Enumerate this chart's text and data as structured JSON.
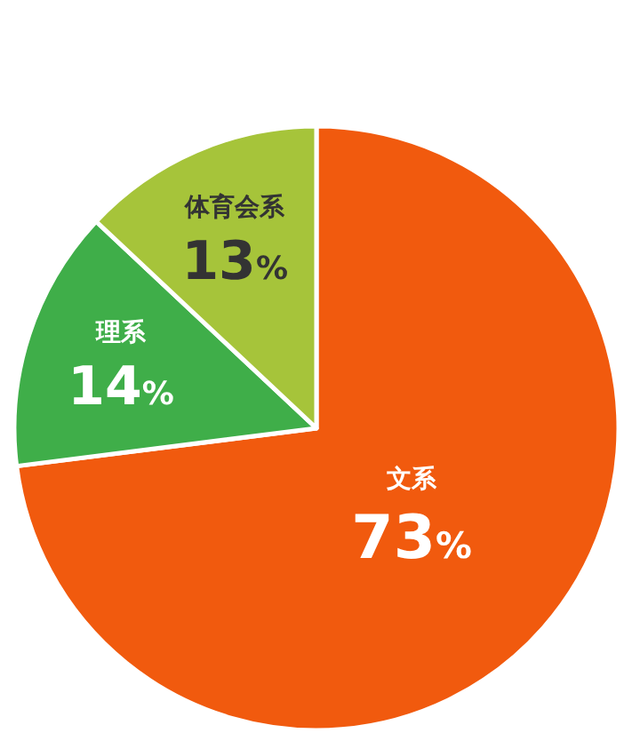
{
  "chart_data": {
    "type": "pie",
    "categories": [
      "文系",
      "理系",
      "体育会系"
    ],
    "values": [
      73,
      14,
      13
    ],
    "colors": [
      "#f15a0e",
      "#3fae49",
      "#a6c43a"
    ],
    "value_labels": [
      "73%",
      "14%",
      "13%"
    ]
  }
}
